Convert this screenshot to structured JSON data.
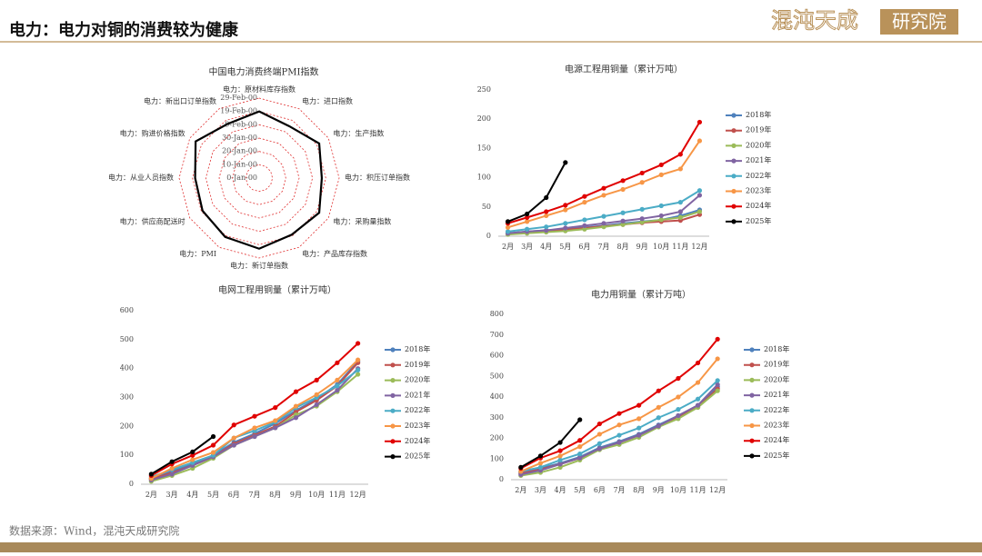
{
  "header": {
    "title": "电力：电力对铜的消费较为健康",
    "brand": "混沌天成",
    "brand_box": "研究院"
  },
  "footer": {
    "source": "数据来源：Wind，混沌天成研究院"
  },
  "chart_data": [
    {
      "type": "radar",
      "title": "中国电力消费终端PMI指数",
      "categories": [
        "电力：原材料库存指数",
        "电力：进口指数",
        "电力：生产指数",
        "电力：积压订单指数",
        "电力：采购量指数",
        "电力：产品库存指数",
        "电力：新订单指数",
        "电力：PMI",
        "电力：供应商配送时",
        "电力：从业人员指数",
        "电力：购进价格指数",
        "电力：新出口订单指数"
      ],
      "values": [
        50,
        45,
        52,
        47,
        52,
        49,
        53,
        51,
        49,
        48,
        55,
        47
      ],
      "color": "#000000",
      "rlim": [
        0,
        60
      ],
      "rticks": [
        {
          "value": 0,
          "label": "0-Jan-00"
        },
        {
          "value": 10,
          "label": "10-Jan-00"
        },
        {
          "value": 20,
          "label": "20-Jan-00"
        },
        {
          "value": 30,
          "label": "30-Jan-00"
        },
        {
          "value": 40,
          "label": "9-Feb-00"
        },
        {
          "value": 50,
          "label": "19-Feb-00"
        },
        {
          "value": 60,
          "label": "29-Feb-00"
        }
      ],
      "ring_color": "#e03030"
    },
    {
      "type": "line",
      "title": "电源工程用铜量（累计万吨）",
      "categories": [
        "2月",
        "3月",
        "4月",
        "5月",
        "6月",
        "7月",
        "8月",
        "9月",
        "10月",
        "11月",
        "12月"
      ],
      "ylim": [
        0,
        250
      ],
      "yticks": [
        0,
        50,
        100,
        150,
        200,
        250
      ],
      "grid": false,
      "legend": "right",
      "series": [
        {
          "name": "2018年",
          "color": "#4f81bd",
          "values": [
            5,
            8,
            10,
            12,
            15,
            18,
            22,
            25,
            28,
            35,
            45
          ]
        },
        {
          "name": "2019年",
          "color": "#c0504d",
          "values": [
            4,
            7,
            9,
            11,
            14,
            17,
            20,
            23,
            25,
            27,
            37
          ]
        },
        {
          "name": "2020年",
          "color": "#9bbb59",
          "values": [
            3,
            5,
            7,
            9,
            12,
            16,
            20,
            24,
            28,
            32,
            42
          ]
        },
        {
          "name": "2021年",
          "color": "#8064a2",
          "values": [
            5,
            8,
            10,
            14,
            18,
            22,
            26,
            30,
            35,
            42,
            70
          ]
        },
        {
          "name": "2022年",
          "color": "#4bacc6",
          "values": [
            8,
            12,
            16,
            22,
            28,
            34,
            40,
            46,
            52,
            58,
            78
          ]
        },
        {
          "name": "2023年",
          "color": "#f79646",
          "values": [
            15,
            25,
            35,
            45,
            58,
            70,
            80,
            92,
            105,
            115,
            163
          ]
        },
        {
          "name": "2024年",
          "color": "#e00000",
          "values": [
            22,
            32,
            42,
            53,
            68,
            82,
            95,
            108,
            122,
            140,
            195
          ]
        },
        {
          "name": "2025年",
          "color": "#000000",
          "values": [
            25,
            38,
            66,
            126,
            null,
            null,
            null,
            null,
            null,
            null,
            null
          ]
        }
      ]
    },
    {
      "type": "line",
      "title": "电网工程用铜量（累计万吨）",
      "categories": [
        "2月",
        "3月",
        "4月",
        "5月",
        "6月",
        "7月",
        "8月",
        "9月",
        "10月",
        "11月",
        "12月"
      ],
      "ylim": [
        0,
        600
      ],
      "yticks": [
        0,
        100,
        200,
        300,
        400,
        500,
        600
      ],
      "grid": false,
      "legend": "right",
      "series": [
        {
          "name": "2018年",
          "color": "#4f81bd",
          "values": [
            20,
            45,
            70,
            100,
            145,
            175,
            210,
            255,
            295,
            345,
            425
          ]
        },
        {
          "name": "2019年",
          "color": "#c0504d",
          "values": [
            18,
            40,
            65,
            95,
            140,
            170,
            200,
            250,
            290,
            340,
            420
          ]
        },
        {
          "name": "2020年",
          "color": "#9bbb59",
          "values": [
            10,
            30,
            55,
            90,
            135,
            165,
            195,
            240,
            270,
            320,
            380
          ]
        },
        {
          "name": "2021年",
          "color": "#8064a2",
          "values": [
            15,
            35,
            65,
            95,
            135,
            165,
            195,
            230,
            275,
            325,
            400
          ]
        },
        {
          "name": "2022年",
          "color": "#4bacc6",
          "values": [
            25,
            50,
            75,
            100,
            160,
            185,
            215,
            265,
            300,
            340,
            395
          ]
        },
        {
          "name": "2023年",
          "color": "#f79646",
          "values": [
            20,
            55,
            85,
            110,
            160,
            195,
            220,
            270,
            310,
            360,
            430
          ]
        },
        {
          "name": "2024年",
          "color": "#e00000",
          "values": [
            30,
            70,
            100,
            135,
            205,
            235,
            265,
            320,
            360,
            420,
            487
          ]
        },
        {
          "name": "2025年",
          "color": "#000000",
          "values": [
            35,
            78,
            112,
            165,
            null,
            null,
            null,
            null,
            null,
            null,
            null
          ]
        }
      ]
    },
    {
      "type": "line",
      "title": "电力用铜量（累计万吨）",
      "categories": [
        "2月",
        "3月",
        "4月",
        "5月",
        "6月",
        "7月",
        "8月",
        "9月",
        "10月",
        "11月",
        "12月"
      ],
      "ylim": [
        0,
        800
      ],
      "yticks": [
        0,
        100,
        200,
        300,
        400,
        500,
        600,
        700,
        800
      ],
      "grid": false,
      "legend": "right",
      "series": [
        {
          "name": "2018年",
          "color": "#4f81bd",
          "values": [
            35,
            55,
            80,
            110,
            155,
            185,
            220,
            265,
            310,
            360,
            450
          ]
        },
        {
          "name": "2019年",
          "color": "#c0504d",
          "values": [
            30,
            50,
            75,
            105,
            150,
            180,
            215,
            260,
            305,
            350,
            440
          ]
        },
        {
          "name": "2020年",
          "color": "#9bbb59",
          "values": [
            20,
            35,
            60,
            95,
            145,
            170,
            205,
            255,
            295,
            350,
            430
          ]
        },
        {
          "name": "2021年",
          "color": "#8064a2",
          "values": [
            25,
            45,
            75,
            105,
            150,
            180,
            215,
            260,
            310,
            360,
            460
          ]
        },
        {
          "name": "2022年",
          "color": "#4bacc6",
          "values": [
            40,
            60,
            95,
            125,
            175,
            215,
            250,
            300,
            340,
            390,
            480
          ]
        },
        {
          "name": "2023年",
          "color": "#f79646",
          "values": [
            40,
            80,
            115,
            160,
            220,
            265,
            295,
            350,
            400,
            470,
            585
          ]
        },
        {
          "name": "2024年",
          "color": "#e00000",
          "values": [
            55,
            105,
            140,
            190,
            270,
            320,
            360,
            430,
            490,
            565,
            680
          ]
        },
        {
          "name": "2025年",
          "color": "#000000",
          "values": [
            60,
            115,
            180,
            290,
            null,
            null,
            null,
            null,
            null,
            null,
            null
          ]
        }
      ]
    }
  ]
}
